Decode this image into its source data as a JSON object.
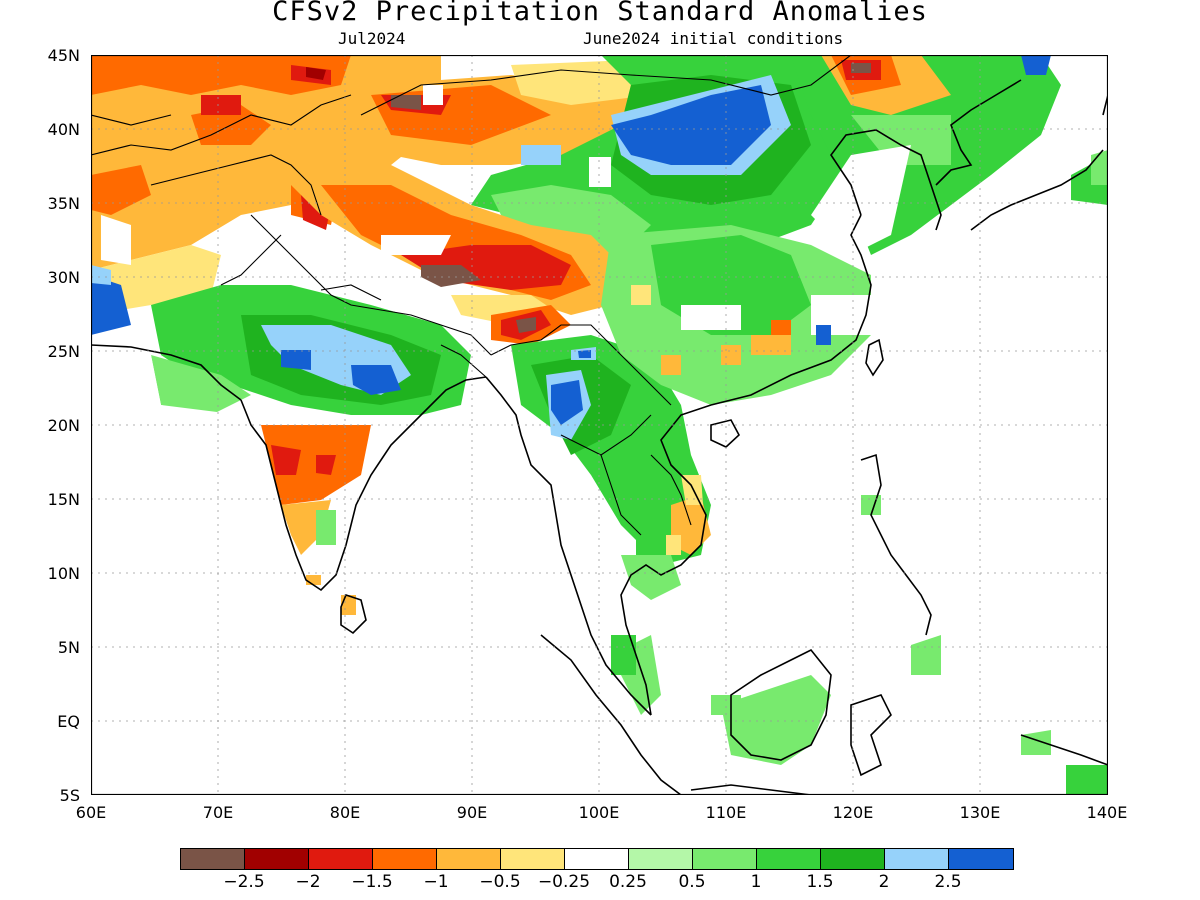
{
  "title": "CFSv2 Precipitation Standard Anomalies",
  "subtitle_left": "Jul2024",
  "subtitle_right": "June2024 initial conditions",
  "y_axis_labels": [
    "45N",
    "40N",
    "35N",
    "30N",
    "25N",
    "20N",
    "15N",
    "10N",
    "5N",
    "EQ",
    "5S"
  ],
  "x_axis_labels": [
    "60E",
    "70E",
    "80E",
    "90E",
    "100E",
    "110E",
    "120E",
    "130E",
    "140E"
  ],
  "colorbar": {
    "colors": [
      "#7a5447",
      "#a10000",
      "#e01a0f",
      "#ff6a00",
      "#ffb83a",
      "#ffe57a",
      "#ffffff",
      "#b4f7a8",
      "#78ea6e",
      "#37d23c",
      "#1fb31f",
      "#96d2fa",
      "#1460d2"
    ],
    "labels": [
      "−2.5",
      "−2",
      "−1.5",
      "−1",
      "−0.5",
      "−0.25",
      "0.25",
      "0.5",
      "1",
      "1.5",
      "2",
      "2.5"
    ]
  },
  "legend_bins": [
    "< -2.5",
    "-2.5 to -2",
    "-2 to -1.5",
    "-1.5 to -1",
    "-1 to -0.5",
    "-0.5 to -0.25",
    "-0.25 to 0.25",
    "0.25 to 0.5",
    "0.5 to 1",
    "1 to 1.5",
    "1.5 to 2",
    "2 to 2.5",
    "> 2.5"
  ]
}
